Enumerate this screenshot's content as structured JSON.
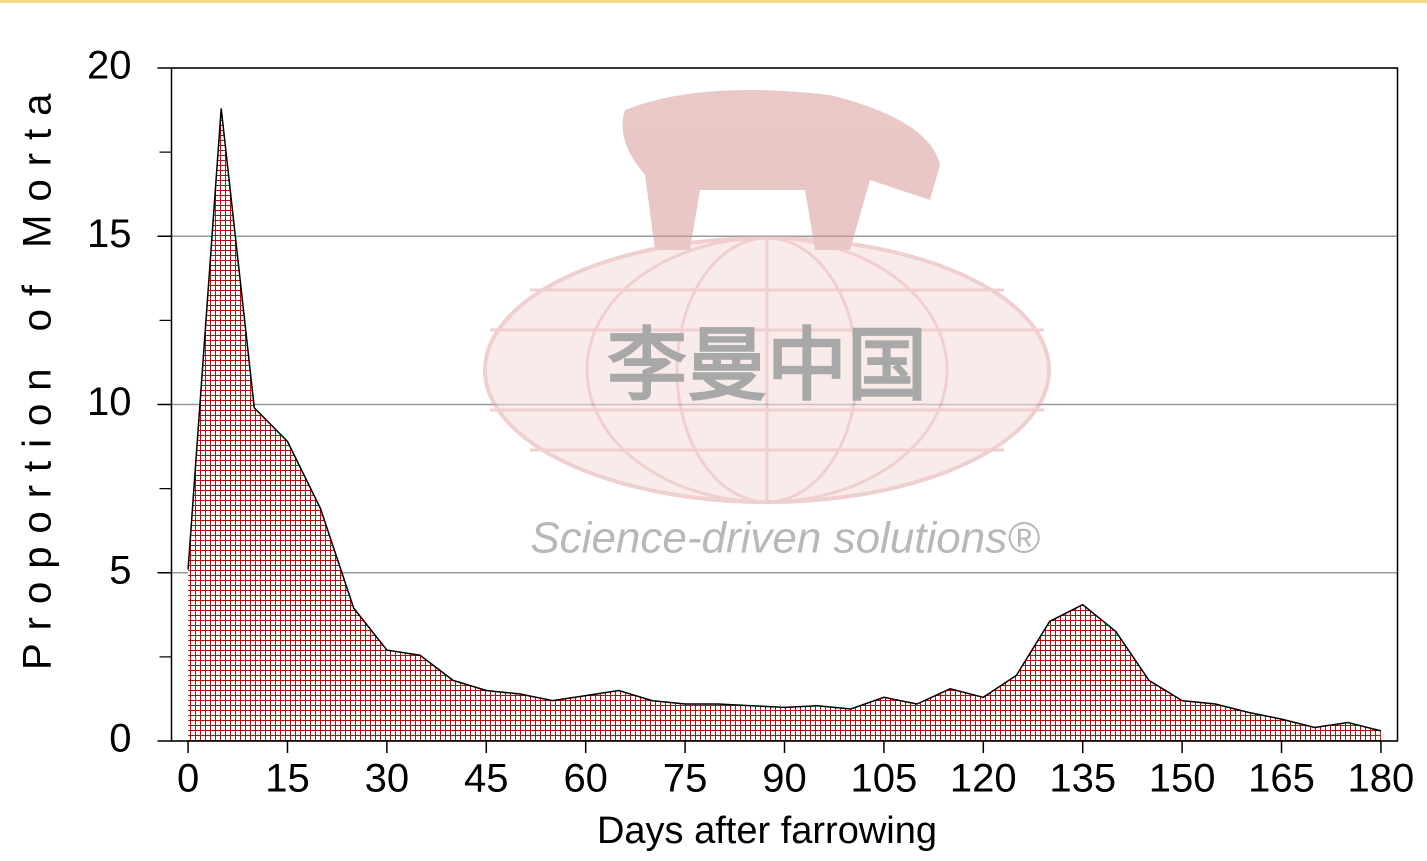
{
  "chart_data": {
    "type": "area",
    "x_label": "Days after farrowing",
    "y_label": "Proportion of Morta",
    "annotations": [
      "李曼中国",
      "Science-driven solutions®"
    ],
    "x": [
      0,
      5,
      10,
      15,
      20,
      25,
      30,
      35,
      40,
      45,
      50,
      55,
      60,
      65,
      70,
      75,
      80,
      85,
      90,
      95,
      100,
      105,
      110,
      115,
      120,
      125,
      130,
      135,
      140,
      145,
      150,
      155,
      160,
      165,
      170,
      175,
      180
    ],
    "values": [
      5.1,
      18.8,
      9.9,
      8.9,
      6.9,
      3.95,
      2.7,
      2.55,
      1.8,
      1.5,
      1.4,
      1.2,
      1.35,
      1.5,
      1.2,
      1.1,
      1.1,
      1.05,
      1.0,
      1.05,
      0.95,
      1.3,
      1.1,
      1.55,
      1.3,
      1.95,
      3.55,
      4.05,
      3.25,
      1.8,
      1.2,
      1.1,
      0.85,
      0.65,
      0.4,
      0.55,
      0.3
    ],
    "color": "#b01010",
    "xlim": [
      -2.5,
      182.5
    ],
    "xticks": [
      0,
      15,
      30,
      45,
      60,
      75,
      90,
      105,
      120,
      135,
      150,
      165,
      180
    ],
    "ylim": [
      0,
      20
    ],
    "yticks": [
      0,
      5,
      10,
      15,
      20
    ],
    "yminorticks": [
      2.5,
      7.5,
      12.5,
      17.5
    ],
    "grid": true
  }
}
